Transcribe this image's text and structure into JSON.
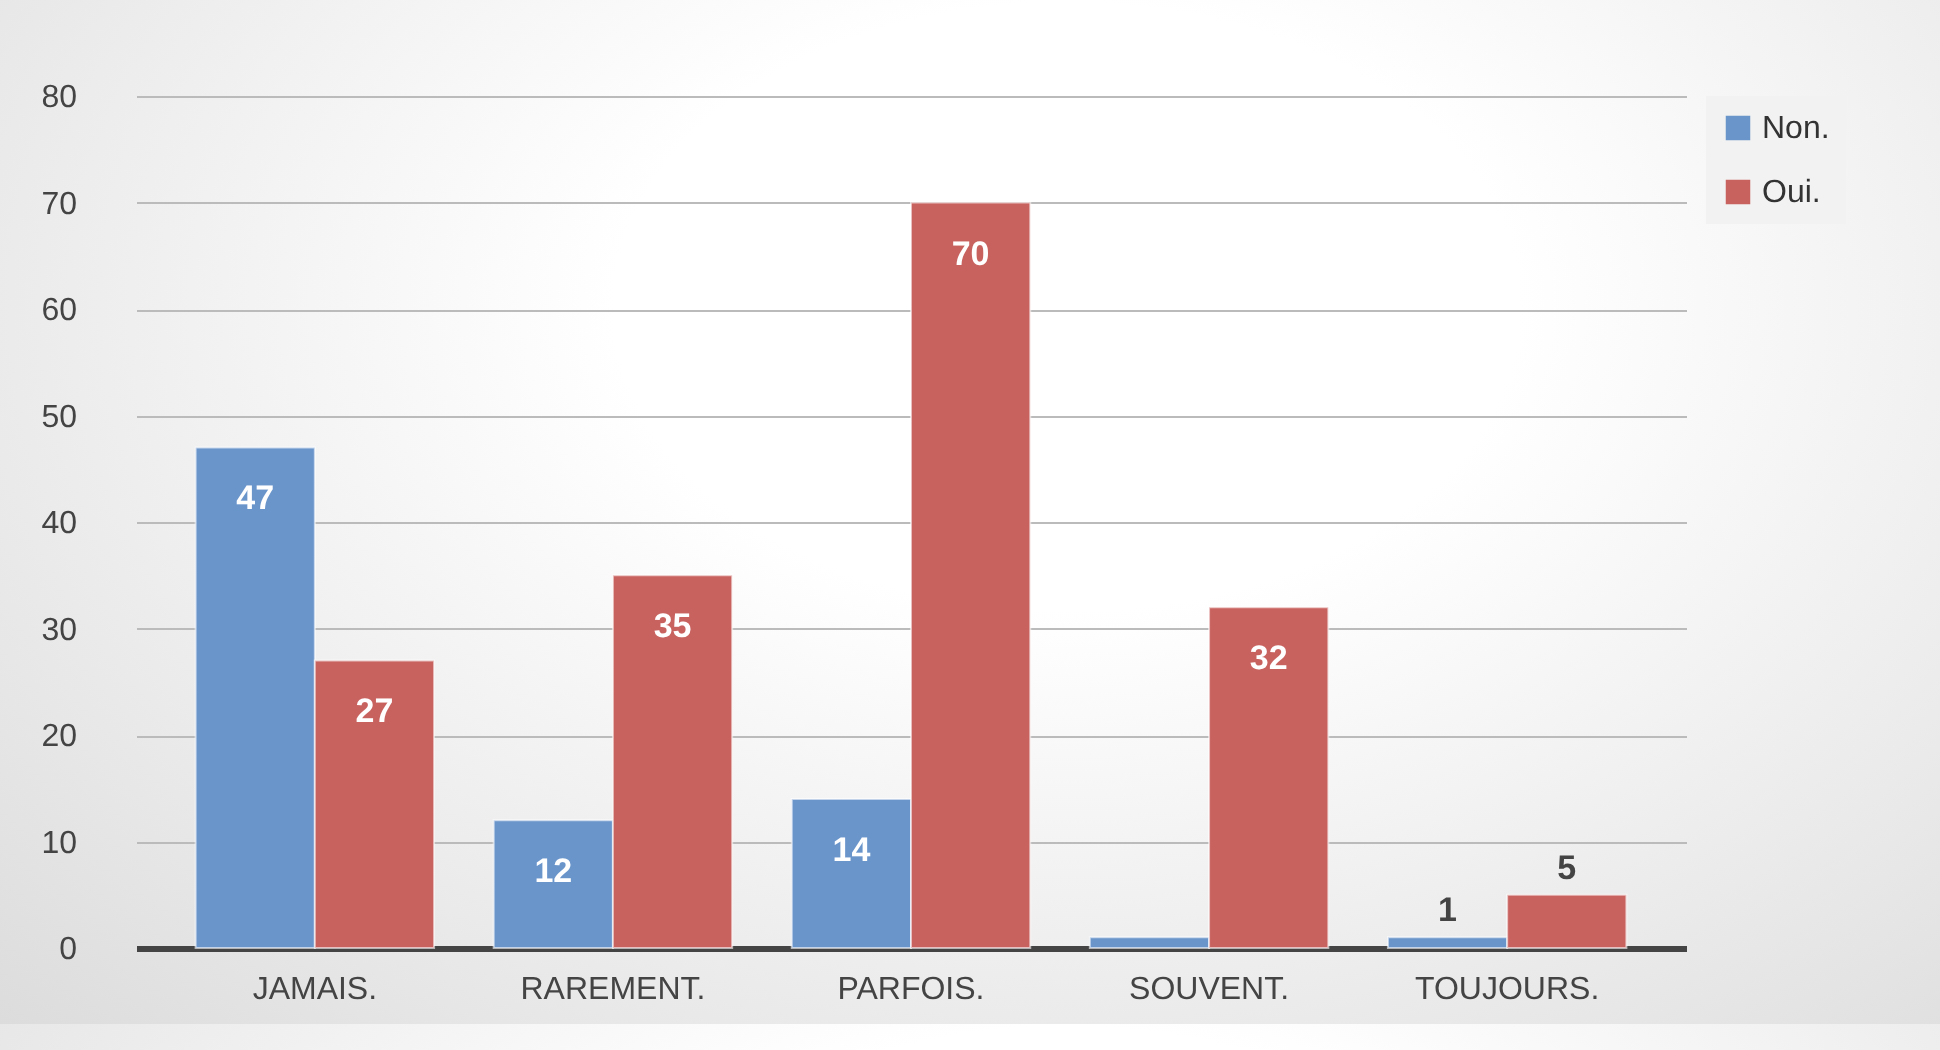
{
  "chart_data": {
    "type": "bar",
    "categories": [
      "JAMAIS.",
      "RAREMENT.",
      "PARFOIS.",
      "SOUVENT.",
      "TOUJOURS."
    ],
    "series": [
      {
        "name": "Non.",
        "color": "#6a95cb",
        "values": [
          47,
          12,
          14,
          1,
          1
        ],
        "value_labels": [
          "47",
          "12",
          "14",
          null,
          "1"
        ]
      },
      {
        "name": "Oui.",
        "color": "#c8625f",
        "values": [
          27,
          35,
          70,
          32,
          5
        ],
        "value_labels": [
          "27",
          "35",
          "70",
          "32",
          "5"
        ]
      }
    ],
    "ylim": [
      0,
      80
    ],
    "yticks": [
      0,
      10,
      20,
      30,
      40,
      50,
      60,
      70,
      80
    ],
    "grid": "y",
    "legend": "right"
  }
}
